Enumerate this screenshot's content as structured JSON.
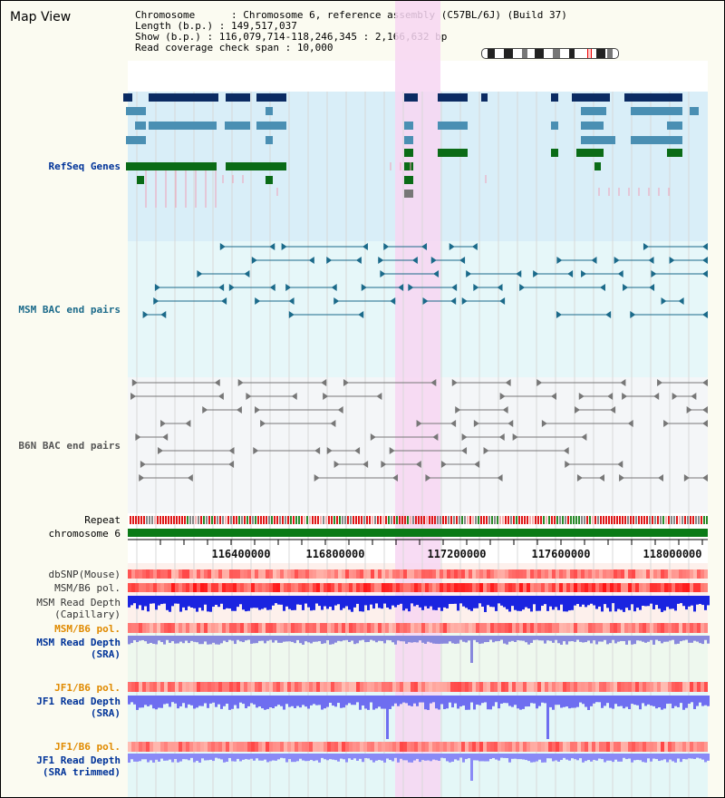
{
  "header": {
    "title": "Map View",
    "chromosome_label": "Chromosome      : ",
    "chromosome_value": "Chromosome 6, reference assembly (C57BL/6J) (Build 37)",
    "length_label": "Length (b.p.) : ",
    "length_value": "149,517,037",
    "show_label": "Show (b.p.) : ",
    "show_value": "116,079,714-118,246,345 : 2,166,632 bp",
    "coverage_label": "Read coverage check span : ",
    "coverage_value": "10,000"
  },
  "tracks": {
    "refseq": "RefSeq Genes",
    "msm_bac": "MSM BAC end pairs",
    "b6n_bac": "B6N BAC end pairs",
    "repeat": "Repeat",
    "chromosome": "chromosome 6",
    "dbsnp": "dbSNP(Mouse)",
    "msm_b6_pol_1": "MSM/B6 pol.",
    "msm_read_depth_cap_1": "MSM Read Depth",
    "msm_read_depth_cap_2": "(Capillary)",
    "msm_b6_pol_2": "MSM/B6 pol.",
    "msm_read_depth_sra_1": "MSM Read Depth",
    "msm_read_depth_sra_2": "(SRA)",
    "jf1_b6_pol_1": "JF1/B6 pol.",
    "jf1_read_depth_sra_1": "JF1 Read Depth",
    "jf1_read_depth_sra_2": "(SRA)",
    "jf1_b6_pol_2": "JF1/B6 pol.",
    "jf1_read_depth_trim_1": "JF1 Read Depth",
    "jf1_read_depth_trim_2": "(SRA trimmed)"
  },
  "axis": {
    "ticks": [
      "116400000",
      "116800000",
      "117200000",
      "117600000",
      "118000000"
    ]
  },
  "colors": {
    "refseq_bg": "#d9eef8",
    "bac_bg": "#e6f7f9",
    "highlight": "#f7d6f2",
    "navy": "#0b2b63",
    "steel": "#4a8fb3",
    "green": "#0a6b16",
    "teal": "#1b6a8a",
    "gray": "#777777",
    "track_blue": "#003399",
    "track_orange": "#e08a00"
  }
}
